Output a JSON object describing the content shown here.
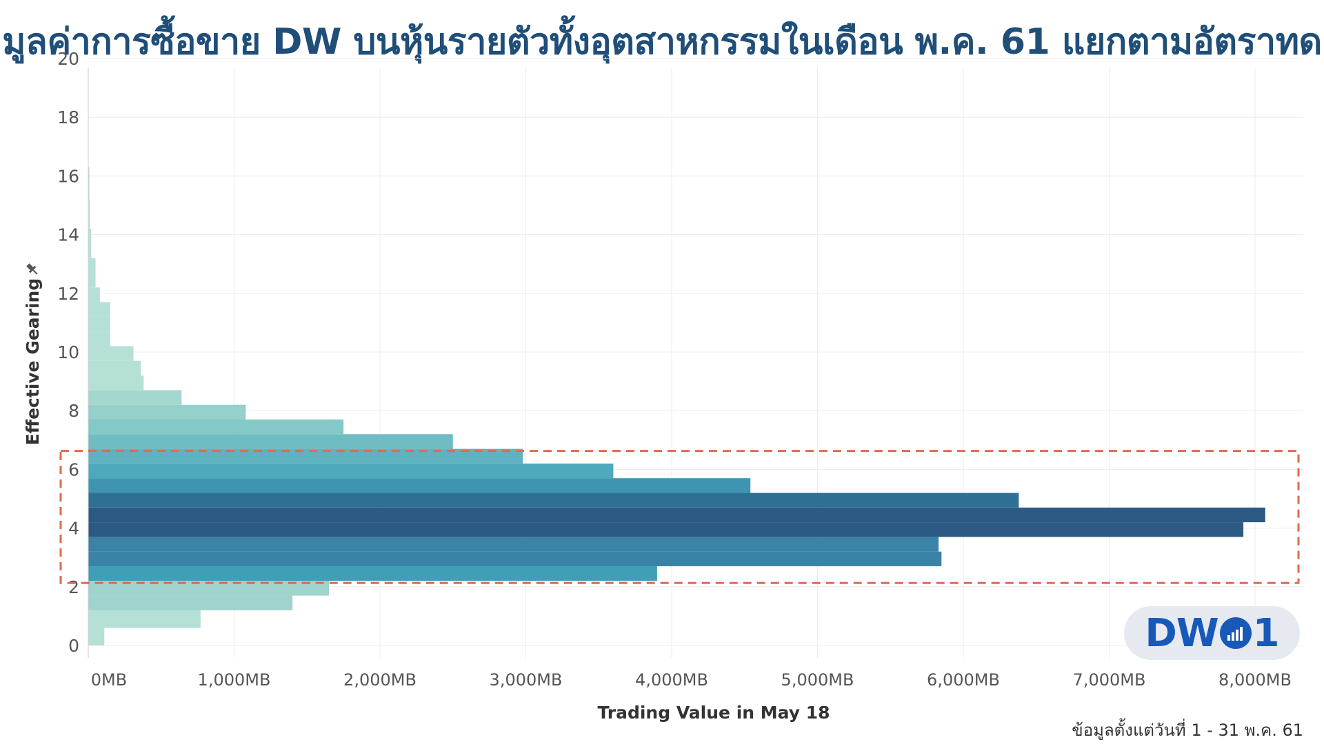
{
  "title": "มูลค่าการซื้อขาย DW บนหุ้นรายตัวทั้งอุตสาหกรรมในเดือน พ.ค. 61 แยกตามอัตราทด",
  "footnote": "ข้อมูลตั้งแต่วันที่ 1 - 31 พ.ค. 61",
  "logo": {
    "text_left": "DW",
    "text_right": "1",
    "icon": "signal-bars-icon"
  },
  "chart_data": {
    "type": "bar",
    "orientation": "horizontal",
    "xlabel": "Trading Value in May 18",
    "ylabel": "Effective Gearing",
    "ylabel_icon": "pin-icon",
    "xlim": [
      0,
      8500
    ],
    "ylim": [
      -0.4,
      20.5
    ],
    "xticks": [
      0,
      1000,
      2000,
      3000,
      4000,
      5000,
      6000,
      7000,
      8000
    ],
    "xtick_labels": [
      "0MB",
      "1,000MB",
      "2,000MB",
      "3,000MB",
      "4,000MB",
      "5,000MB",
      "6,000MB",
      "7,000MB",
      "8,000MB"
    ],
    "yticks": [
      0,
      2,
      4,
      6,
      8,
      10,
      12,
      14,
      16,
      18,
      20
    ],
    "ytick_labels": [
      "0",
      "2",
      "4",
      "6",
      "8",
      "10",
      "12",
      "14",
      "16",
      "18",
      "20"
    ],
    "grid": true,
    "highlight": {
      "y_from": 2.2,
      "y_to": 6.7,
      "color": "#e06a4f",
      "style": "dashed"
    },
    "bars": [
      {
        "y0": 0.0,
        "y1": 0.6,
        "value": 110,
        "color": "#b5e0d6"
      },
      {
        "y0": 0.6,
        "y1": 1.2,
        "value": 770,
        "color": "#b5e0d6"
      },
      {
        "y0": 1.2,
        "y1": 1.7,
        "value": 1400,
        "color": "#9fd3cb"
      },
      {
        "y0": 1.7,
        "y1": 2.2,
        "value": 1650,
        "color": "#9fd3cb"
      },
      {
        "y0": 2.2,
        "y1": 2.7,
        "value": 3900,
        "color": "#3f9fb6"
      },
      {
        "y0": 2.7,
        "y1": 3.2,
        "value": 5850,
        "color": "#3a82a6"
      },
      {
        "y0": 3.2,
        "y1": 3.7,
        "value": 5830,
        "color": "#3a82a6"
      },
      {
        "y0": 3.7,
        "y1": 4.2,
        "value": 7920,
        "color": "#2c5a84"
      },
      {
        "y0": 4.2,
        "y1": 4.7,
        "value": 8070,
        "color": "#2c5a84"
      },
      {
        "y0": 4.7,
        "y1": 5.2,
        "value": 6380,
        "color": "#306f95"
      },
      {
        "y0": 5.2,
        "y1": 5.7,
        "value": 4540,
        "color": "#3f94b1"
      },
      {
        "y0": 5.7,
        "y1": 6.2,
        "value": 3600,
        "color": "#4ea9bd"
      },
      {
        "y0": 6.2,
        "y1": 6.7,
        "value": 2980,
        "color": "#5fb2c0"
      },
      {
        "y0": 6.7,
        "y1": 7.2,
        "value": 2500,
        "color": "#6fbcc3"
      },
      {
        "y0": 7.2,
        "y1": 7.7,
        "value": 1750,
        "color": "#84c8c8"
      },
      {
        "y0": 7.7,
        "y1": 8.2,
        "value": 1080,
        "color": "#95d0cb"
      },
      {
        "y0": 8.2,
        "y1": 8.7,
        "value": 640,
        "color": "#a4d8cf"
      },
      {
        "y0": 8.7,
        "y1": 9.2,
        "value": 380,
        "color": "#b5e0d6"
      },
      {
        "y0": 9.2,
        "y1": 9.7,
        "value": 360,
        "color": "#b5e0d6"
      },
      {
        "y0": 9.7,
        "y1": 10.2,
        "value": 310,
        "color": "#b5e0d6"
      },
      {
        "y0": 10.2,
        "y1": 10.7,
        "value": 150,
        "color": "#b5e0d6"
      },
      {
        "y0": 10.7,
        "y1": 11.2,
        "value": 150,
        "color": "#b5e0d6"
      },
      {
        "y0": 11.2,
        "y1": 11.7,
        "value": 150,
        "color": "#b5e0d6"
      },
      {
        "y0": 11.7,
        "y1": 12.2,
        "value": 80,
        "color": "#b5e0d6"
      },
      {
        "y0": 12.2,
        "y1": 12.7,
        "value": 50,
        "color": "#b5e0d6"
      },
      {
        "y0": 12.7,
        "y1": 13.2,
        "value": 50,
        "color": "#b5e0d6"
      },
      {
        "y0": 13.2,
        "y1": 13.7,
        "value": 20,
        "color": "#b5e0d6"
      },
      {
        "y0": 13.7,
        "y1": 14.2,
        "value": 20,
        "color": "#b5e0d6"
      },
      {
        "y0": 14.2,
        "y1": 14.7,
        "value": 10,
        "color": "#b5e0d6"
      },
      {
        "y0": 14.7,
        "y1": 15.2,
        "value": 10,
        "color": "#b5e0d6"
      },
      {
        "y0": 15.2,
        "y1": 15.7,
        "value": 8,
        "color": "#b5e0d6"
      },
      {
        "y0": 15.7,
        "y1": 16.3,
        "value": 8,
        "color": "#b5e0d6"
      }
    ]
  }
}
